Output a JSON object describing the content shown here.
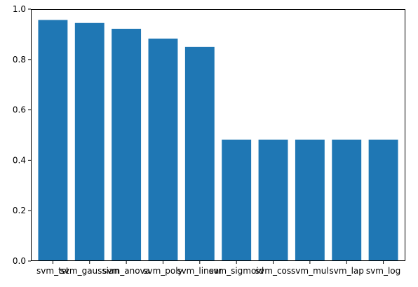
{
  "chart_data": {
    "type": "bar",
    "title": "",
    "xlabel": "",
    "ylabel": "",
    "categories": [
      "svm_tst",
      "svm_gaussian",
      "svm_anova",
      "svm_poly",
      "svm_linear",
      "svm_sigmoid",
      "svm_cos",
      "svm_mul",
      "svm_lap",
      "svm_log"
    ],
    "values": [
      0.957,
      0.945,
      0.922,
      0.883,
      0.85,
      0.482,
      0.482,
      0.482,
      0.482,
      0.482
    ],
    "ylim": [
      0,
      1
    ],
    "yticks": [
      "0.0",
      "0.2",
      "0.4",
      "0.6",
      "0.8",
      "1.0"
    ],
    "bar_color": "#1f77b4",
    "grid": false
  }
}
